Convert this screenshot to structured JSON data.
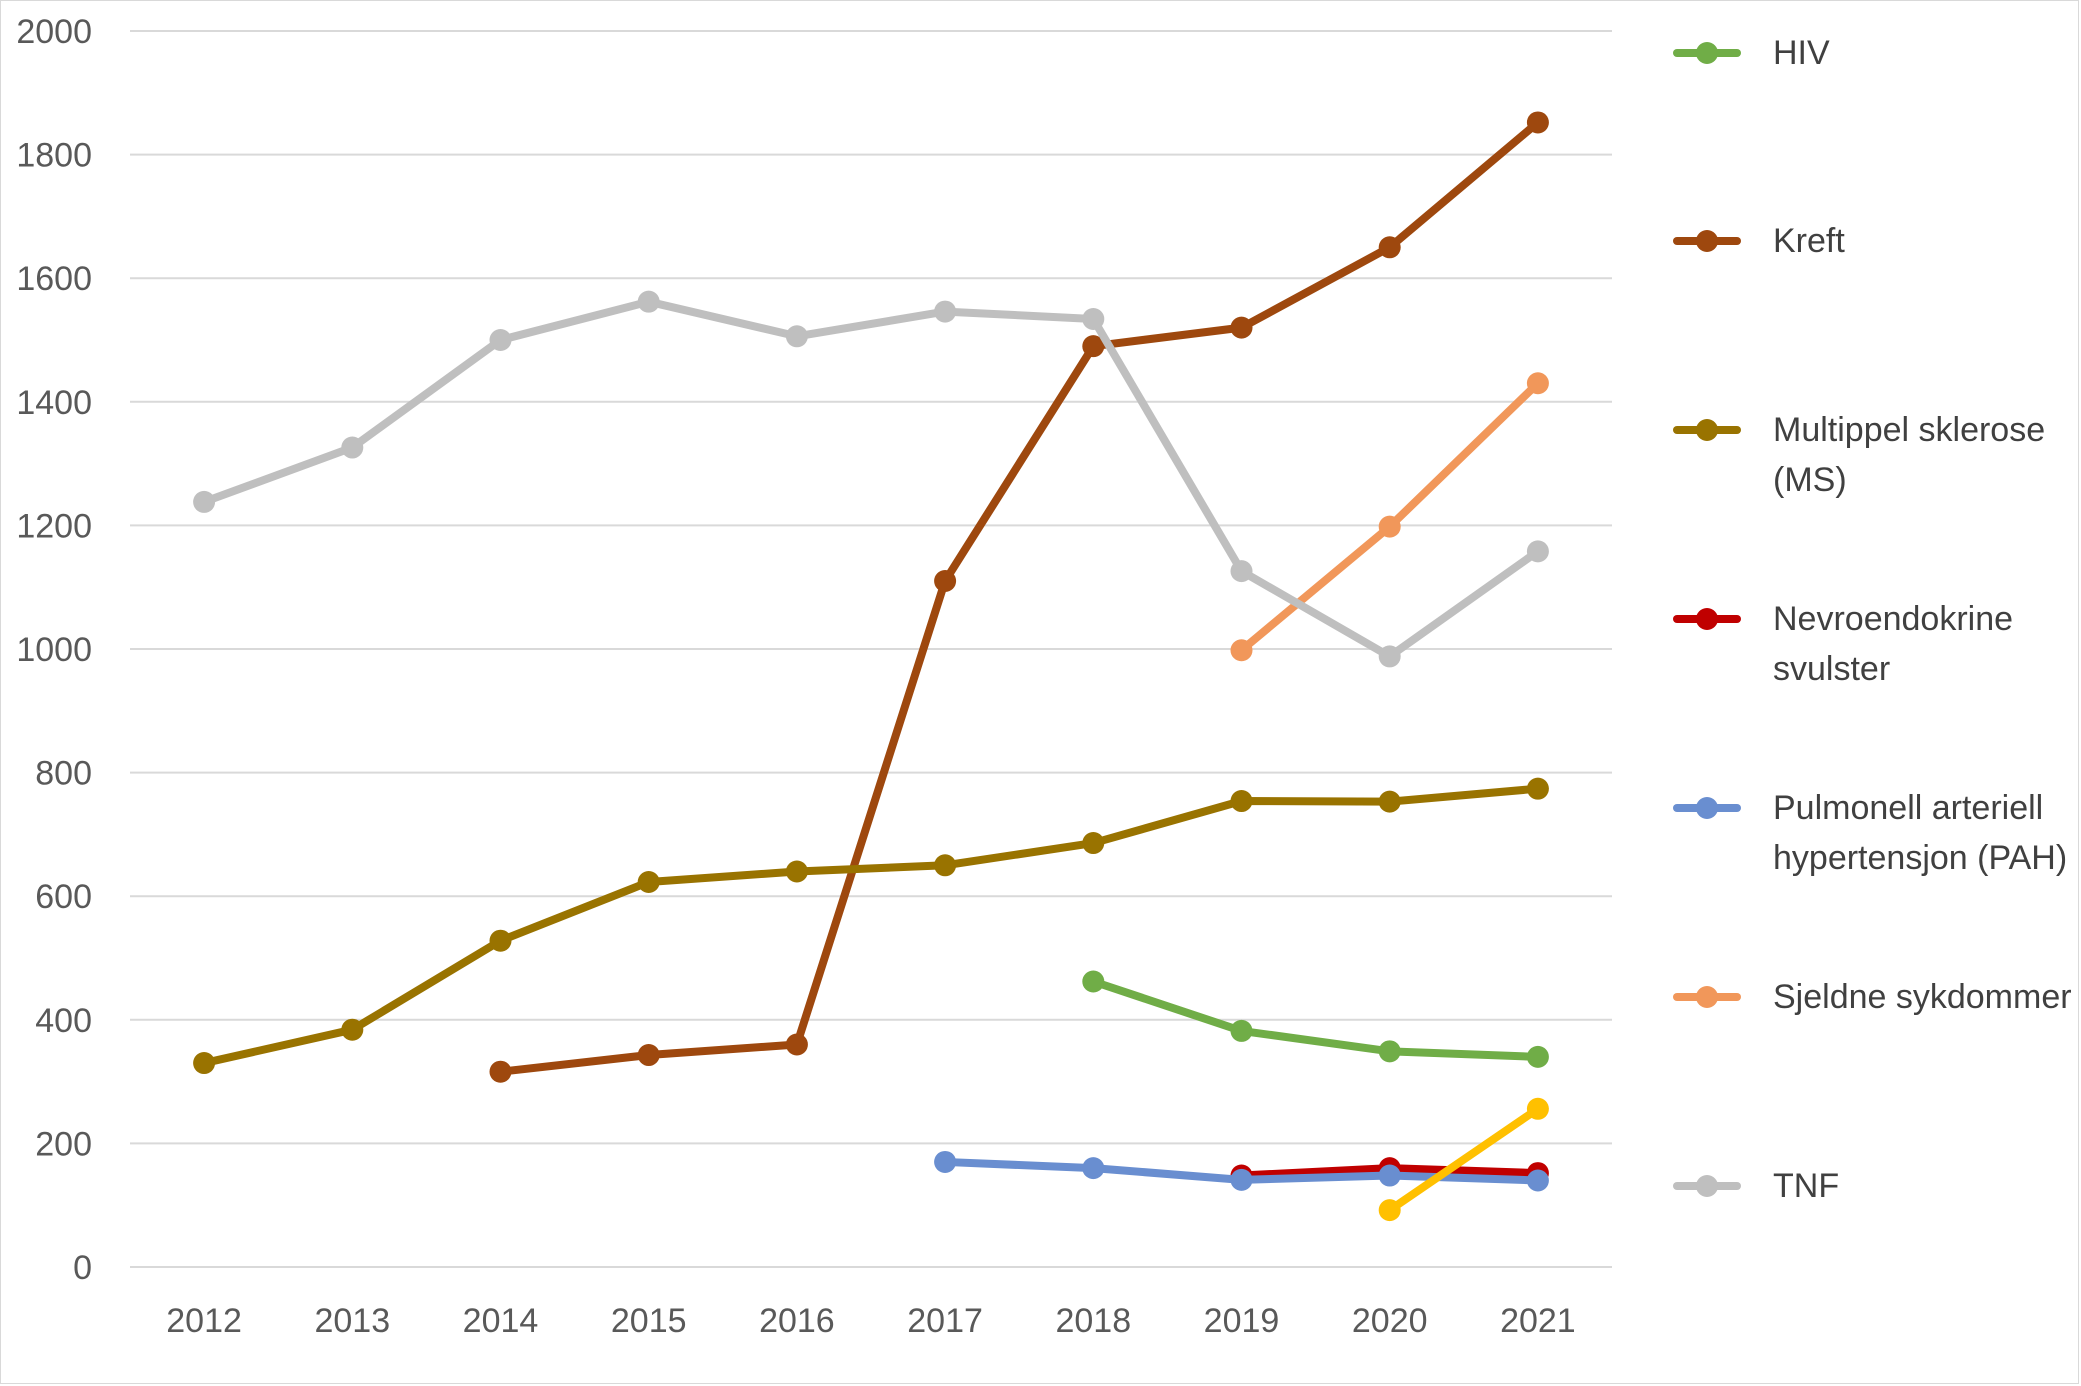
{
  "chart_data": {
    "type": "line",
    "title": "",
    "xlabel": "",
    "ylabel": "",
    "categories": [
      "2012",
      "2013",
      "2014",
      "2015",
      "2016",
      "2017",
      "2018",
      "2019",
      "2020",
      "2021"
    ],
    "ylim": [
      0,
      2000
    ],
    "yticks": [
      "0",
      "200",
      "400",
      "600",
      "800",
      "1000",
      "1200",
      "1400",
      "1600",
      "1800",
      "2000"
    ],
    "grid": true,
    "legend_position": "right",
    "series": [
      {
        "name": "HIV",
        "color": "#70ad47",
        "values": [
          null,
          null,
          null,
          null,
          null,
          null,
          462,
          382,
          349,
          340
        ]
      },
      {
        "name": "Kreft",
        "color": "#9e480e",
        "values": [
          null,
          null,
          316,
          343,
          360,
          1110,
          1490,
          1520,
          1650,
          1852
        ]
      },
      {
        "name": "Multippel sklerose (MS)",
        "color": "#997300",
        "values": [
          330,
          384,
          528,
          623,
          640,
          650,
          686,
          754,
          753,
          774
        ]
      },
      {
        "name": "Nevroendokrine svulster",
        "color": "#c00000",
        "values": [
          null,
          null,
          null,
          null,
          null,
          null,
          null,
          148,
          160,
          152
        ]
      },
      {
        "name": "Pulmonell arteriell hypertensjon (PAH)",
        "color": "#698ed0",
        "values": [
          null,
          null,
          null,
          null,
          null,
          170,
          160,
          141,
          148,
          140
        ]
      },
      {
        "name": "Sjeldne sykdommer",
        "color": "#f1975a",
        "values": [
          null,
          null,
          null,
          null,
          null,
          null,
          null,
          998,
          1198,
          1430
        ]
      },
      {
        "name": "TNF",
        "color": "#bfbfbf",
        "values": [
          1238,
          1326,
          1500,
          1562,
          1506,
          1546,
          1534,
          1126,
          988,
          1158
        ]
      },
      {
        "name": "",
        "color": "#ffc000",
        "values": [
          null,
          null,
          null,
          null,
          null,
          null,
          null,
          null,
          92,
          256
        ]
      }
    ]
  }
}
